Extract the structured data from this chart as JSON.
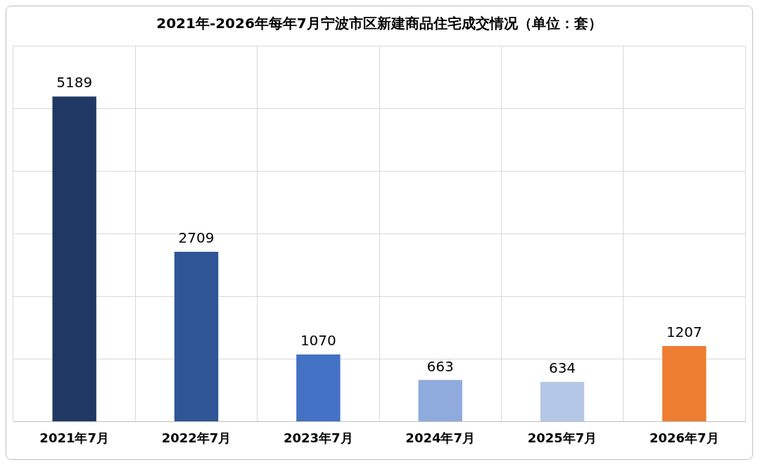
{
  "chart_data": {
    "type": "bar",
    "title": "2021年-2026年每年7月宁波市区新建商品住宅成交情况（单位：套）",
    "categories": [
      "2021年7月",
      "2022年7月",
      "2023年7月",
      "2024年7月",
      "2025年7月",
      "2026年7月"
    ],
    "values": [
      5189,
      2709,
      1070,
      663,
      634,
      1207
    ],
    "colors": [
      "#203864",
      "#2f5597",
      "#4472c4",
      "#8faadc",
      "#b4c7e7",
      "#ed7d31"
    ],
    "ylim": [
      0,
      6000
    ],
    "yticks": [
      {
        "value": 0,
        "label": null
      },
      {
        "value": 1000,
        "label": null
      },
      {
        "value": 2000,
        "label": null
      },
      {
        "value": 3000,
        "label": null
      },
      {
        "value": 4000,
        "label": null
      },
      {
        "value": 5000,
        "label": null
      },
      {
        "value": 6000,
        "label": null
      }
    ],
    "tick_labels": "x",
    "grid": true,
    "data_labels": true
  }
}
